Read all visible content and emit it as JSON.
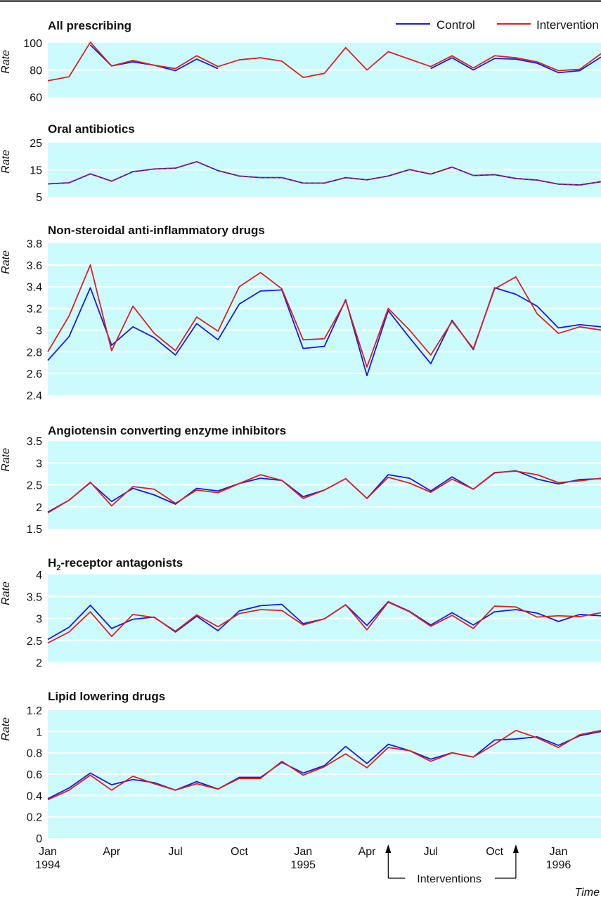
{
  "legend": [
    {
      "name": "Control",
      "color": "#1a1adc"
    },
    {
      "name": "Intervention",
      "color": "#e01e1e"
    }
  ],
  "x_axis": {
    "ticks": [
      {
        "i": 0,
        "month": "Jan",
        "year": "1994"
      },
      {
        "i": 3,
        "month": "Apr",
        "year": ""
      },
      {
        "i": 6,
        "month": "Jul",
        "year": ""
      },
      {
        "i": 9,
        "month": "Oct",
        "year": ""
      },
      {
        "i": 12,
        "month": "Jan",
        "year": "1995"
      },
      {
        "i": 15,
        "month": "Apr",
        "year": ""
      },
      {
        "i": 18,
        "month": "Jul",
        "year": ""
      },
      {
        "i": 21,
        "month": "Oct",
        "year": ""
      },
      {
        "i": 24,
        "month": "Jan",
        "year": "1996"
      }
    ],
    "label": "Time"
  },
  "annotation": {
    "text": "Interventions",
    "x_months": [
      16,
      22
    ]
  },
  "ylabel": "Rate",
  "chart_data": [
    {
      "type": "line",
      "title": "All prescribing",
      "ylabel": "Rate",
      "ylim": [
        60,
        100
      ],
      "yticks": [
        "60",
        "80",
        "100"
      ],
      "x": [
        0,
        1,
        2,
        3,
        4,
        5,
        6,
        7,
        8,
        9,
        10,
        11,
        12,
        13,
        14,
        15,
        16,
        17,
        18,
        19,
        20,
        21,
        22,
        23,
        24,
        25,
        26
      ],
      "series": [
        {
          "name": "Control",
          "values": [
            null,
            null,
            98.5,
            83,
            86,
            83.5,
            79.5,
            88,
            81,
            null,
            null,
            null,
            null,
            null,
            null,
            null,
            null,
            null,
            81,
            89,
            80,
            88.5,
            88,
            85,
            78,
            79.5,
            89.5
          ]
        },
        {
          "name": "Intervention",
          "values": [
            72,
            75,
            100.5,
            83,
            87,
            83.5,
            81,
            90.5,
            82.5,
            87.5,
            89,
            86.5,
            74.5,
            77.5,
            96.5,
            80,
            93.5,
            88,
            82.5,
            90.5,
            81.5,
            90.5,
            89,
            86,
            79.5,
            80.5,
            92
          ]
        }
      ]
    },
    {
      "type": "line",
      "title": "Oral antibiotics",
      "ylabel": "Rate",
      "ylim": [
        5,
        25
      ],
      "yticks": [
        "5",
        "15",
        "25"
      ],
      "x": [
        0,
        1,
        2,
        3,
        4,
        5,
        6,
        7,
        8,
        9,
        10,
        11,
        12,
        13,
        14,
        15,
        16,
        17,
        18,
        19,
        20,
        21,
        22,
        23,
        24,
        25,
        26
      ],
      "series": [
        {
          "name": "Control",
          "values": [
            9.8,
            10.2,
            13.5,
            10.8,
            14.3,
            15.3,
            15.6,
            18,
            14.7,
            12.7,
            12.1,
            12.1,
            10.1,
            10.1,
            12.1,
            11.3,
            12.7,
            15.1,
            13.4,
            16,
            12.9,
            13.2,
            11.8,
            11.2,
            9.7,
            9.4,
            10.6
          ]
        },
        {
          "name": "Intervention",
          "values": [
            9.8,
            10.2,
            13.5,
            10.8,
            14.3,
            15.3,
            15.6,
            18,
            14.7,
            12.7,
            12.1,
            12.1,
            10.1,
            10.1,
            12.1,
            11.3,
            12.7,
            15.1,
            13.4,
            16,
            12.9,
            13.2,
            11.8,
            11.2,
            9.7,
            9.4,
            10.6
          ]
        }
      ]
    },
    {
      "type": "line",
      "title": "Non-steroidal anti-inflammatory drugs",
      "ylabel": "Rate",
      "ylim": [
        2.4,
        3.8
      ],
      "yticks": [
        "2.4",
        "2.6",
        "2.8",
        "3",
        "3.2",
        "3.4",
        "3.6",
        "3.8"
      ],
      "x": [
        0,
        1,
        2,
        3,
        4,
        5,
        6,
        7,
        8,
        9,
        10,
        11,
        12,
        13,
        14,
        15,
        16,
        17,
        18,
        19,
        20,
        21,
        22,
        23,
        24,
        25,
        26
      ],
      "series": [
        {
          "name": "Control",
          "values": [
            2.72,
            2.94,
            3.39,
            2.86,
            3.03,
            2.93,
            2.77,
            3.06,
            2.91,
            3.24,
            3.36,
            3.37,
            2.83,
            2.85,
            3.28,
            2.58,
            3.18,
            2.93,
            2.69,
            3.09,
            2.82,
            3.39,
            3.33,
            3.22,
            3.02,
            3.05,
            3.03
          ]
        },
        {
          "name": "Intervention",
          "values": [
            2.8,
            3.13,
            3.6,
            2.81,
            3.22,
            2.97,
            2.81,
            3.12,
            2.99,
            3.4,
            3.53,
            3.38,
            2.91,
            2.92,
            3.27,
            2.66,
            3.2,
            3,
            2.77,
            3.08,
            2.83,
            3.38,
            3.49,
            3.15,
            2.97,
            3.03,
            3
          ]
        }
      ]
    },
    {
      "type": "line",
      "title": "Angiotensin converting enzyme inhibitors",
      "ylabel": "Rate",
      "ylim": [
        1.5,
        3.5
      ],
      "yticks": [
        "1.5",
        "2",
        "2.5",
        "3",
        "3.5"
      ],
      "x": [
        0,
        1,
        2,
        3,
        4,
        5,
        6,
        7,
        8,
        9,
        10,
        11,
        12,
        13,
        14,
        15,
        16,
        17,
        18,
        19,
        20,
        21,
        22,
        23,
        24,
        25,
        26
      ],
      "series": [
        {
          "name": "Control",
          "values": [
            1.88,
            2.15,
            2.55,
            2.12,
            2.42,
            2.27,
            2.06,
            2.42,
            2.36,
            2.53,
            2.65,
            2.6,
            2.23,
            2.38,
            2.64,
            2.19,
            2.73,
            2.65,
            2.36,
            2.68,
            2.4,
            2.77,
            2.82,
            2.63,
            2.52,
            2.62,
            2.64
          ]
        },
        {
          "name": "Intervention",
          "values": [
            1.86,
            2.15,
            2.56,
            2.02,
            2.46,
            2.4,
            2.08,
            2.38,
            2.32,
            2.53,
            2.73,
            2.6,
            2.19,
            2.38,
            2.64,
            2.19,
            2.67,
            2.54,
            2.33,
            2.63,
            2.4,
            2.78,
            2.81,
            2.73,
            2.55,
            2.59,
            2.65
          ]
        }
      ]
    },
    {
      "type": "line",
      "title": "H",
      "title_sub": "2",
      "title_rest": "-receptor antagonists",
      "ylabel": "Rate",
      "ylim": [
        2,
        4
      ],
      "yticks": [
        "2",
        "2.5",
        "3",
        "3.5",
        "4"
      ],
      "x": [
        0,
        1,
        2,
        3,
        4,
        5,
        6,
        7,
        8,
        9,
        10,
        11,
        12,
        13,
        14,
        15,
        16,
        17,
        18,
        19,
        20,
        21,
        22,
        23,
        24,
        25,
        26
      ],
      "series": [
        {
          "name": "Control",
          "values": [
            2.52,
            2.8,
            3.3,
            2.77,
            2.98,
            3.03,
            2.69,
            3.05,
            2.72,
            3.17,
            3.29,
            3.32,
            2.88,
            2.99,
            3.31,
            2.84,
            3.38,
            3.16,
            2.85,
            3.13,
            2.85,
            3.15,
            3.2,
            3.12,
            2.93,
            3.09,
            3.06
          ]
        },
        {
          "name": "Intervention",
          "values": [
            2.44,
            2.69,
            3.15,
            2.59,
            3.09,
            3.02,
            2.71,
            3.08,
            2.81,
            3.11,
            3.2,
            3.18,
            2.85,
            2.99,
            3.31,
            2.74,
            3.37,
            3.15,
            2.82,
            3.07,
            2.77,
            3.28,
            3.26,
            3.03,
            3.06,
            3.04,
            3.13
          ]
        }
      ]
    },
    {
      "type": "line",
      "title": "Lipid lowering drugs",
      "ylabel": "Rate",
      "ylim": [
        0,
        1.2
      ],
      "yticks": [
        "0",
        "0.2",
        "0.4",
        "0.6",
        "0.8",
        "1",
        "1.2"
      ],
      "x": [
        0,
        1,
        2,
        3,
        4,
        5,
        6,
        7,
        8,
        9,
        10,
        11,
        12,
        13,
        14,
        15,
        16,
        17,
        18,
        19,
        20,
        21,
        22,
        23,
        24,
        25,
        26
      ],
      "series": [
        {
          "name": "Control",
          "values": [
            0.37,
            0.47,
            0.61,
            0.5,
            0.55,
            0.52,
            0.45,
            0.53,
            0.46,
            0.57,
            0.57,
            0.71,
            0.61,
            0.68,
            0.86,
            0.7,
            0.88,
            0.82,
            0.74,
            0.8,
            0.76,
            0.92,
            0.93,
            0.95,
            0.87,
            0.96,
            1
          ]
        },
        {
          "name": "Intervention",
          "values": [
            0.36,
            0.45,
            0.59,
            0.45,
            0.58,
            0.51,
            0.45,
            0.51,
            0.46,
            0.56,
            0.56,
            0.72,
            0.59,
            0.67,
            0.79,
            0.66,
            0.85,
            0.82,
            0.72,
            0.8,
            0.76,
            0.88,
            1.01,
            0.94,
            0.85,
            0.97,
            1.01
          ]
        }
      ]
    }
  ]
}
